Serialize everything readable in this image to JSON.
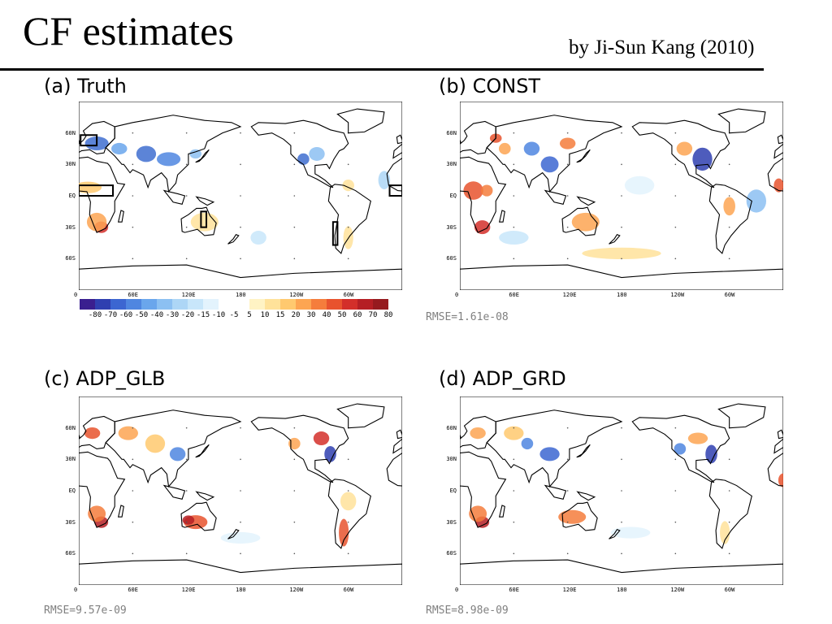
{
  "header": {
    "title": "CF estimates",
    "byline": "by Ji-Sun Kang (2010)"
  },
  "axes": {
    "lat_labels": [
      "60N",
      "30N",
      "EQ",
      "30S",
      "60S"
    ],
    "lon_labels": [
      "0",
      "60E",
      "120E",
      "180",
      "120W",
      "60W"
    ]
  },
  "panels": [
    {
      "label": "(a) Truth",
      "rmse": ""
    },
    {
      "label": "(b) CONST",
      "rmse": "RMSE=1.61e-08"
    },
    {
      "label": "(c) ADP_GLB",
      "rmse": "RMSE=9.57e-09"
    },
    {
      "label": "(d) ADP_GRD",
      "rmse": "RMSE=8.98e-09"
    }
  ],
  "colorbar": {
    "labels": [
      "-80",
      "-70",
      "-60",
      "-50",
      "-40",
      "-30",
      "-20",
      "-15",
      "-10",
      "-5",
      "5",
      "10",
      "15",
      "20",
      "30",
      "40",
      "50",
      "60",
      "70",
      "80"
    ],
    "colors": [
      "#3a1f8f",
      "#2f3fb0",
      "#3c66d1",
      "#4f86e0",
      "#6aa6ec",
      "#8cc0f2",
      "#add6f6",
      "#c8e6fa",
      "#e3f3fd",
      "#ffffff",
      "#ffffff",
      "#fff3c4",
      "#ffe29a",
      "#ffc96f",
      "#fda552",
      "#f57d3c",
      "#e8532e",
      "#d32f2a",
      "#b51f24",
      "#961b1f"
    ]
  },
  "colors": {
    "ocean": "#ffffff",
    "coast": "#000000",
    "positive": "#f08a40",
    "negative": "#3f6fd0"
  }
}
